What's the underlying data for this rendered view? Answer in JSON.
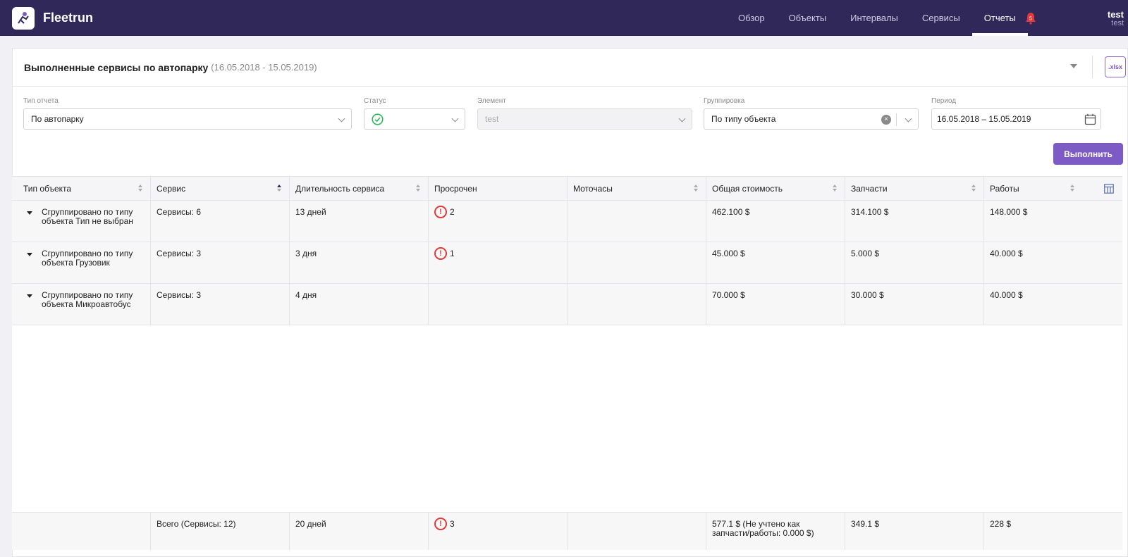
{
  "app": {
    "brand": "Fleetrun"
  },
  "nav": {
    "items": [
      {
        "label": "Обзор",
        "active": false
      },
      {
        "label": "Объекты",
        "active": false
      },
      {
        "label": "Интервалы",
        "active": false
      },
      {
        "label": "Сервисы",
        "active": false
      },
      {
        "label": "Отчеты",
        "active": true
      }
    ],
    "notifications": "5"
  },
  "user": {
    "name": "test",
    "account": "test"
  },
  "report": {
    "title": "Выполненные сервисы по автопарку",
    "period": "(16.05.2018 - 15.05.2019)",
    "export_label": ".xlsx"
  },
  "filters": {
    "report_type": {
      "label": "Тип отчета",
      "value": "По автопарку"
    },
    "status": {
      "label": "Статус",
      "value_icon": "check-circle-icon"
    },
    "element": {
      "label": "Элемент",
      "value": "test"
    },
    "grouping": {
      "label": "Группировка",
      "value": "По типу объекта"
    },
    "period": {
      "label": "Период",
      "value": "16.05.2018 – 15.05.2019"
    },
    "run_label": "Выполнить"
  },
  "table": {
    "columns": [
      "Тип объекта",
      "Сервис",
      "Длительность сервиса",
      "Просрочен",
      "Моточасы",
      "Общая стоимость",
      "Запчасти",
      "Работы"
    ],
    "rows": [
      {
        "group": "Сгруппировано по типу объекта Тип не выбран",
        "service": "Сервисы: 6",
        "duration": "13 дней",
        "overdue": "2",
        "hours": "",
        "total": "462.100 $",
        "parts": "314.100 $",
        "works": "148.000 $"
      },
      {
        "group": "Сгруппировано по типу объекта Грузовик",
        "service": "Сервисы: 3",
        "duration": "3 дня",
        "overdue": "1",
        "hours": "",
        "total": "45.000 $",
        "parts": "5.000 $",
        "works": "40.000 $"
      },
      {
        "group": "Сгруппировано по типу объекта Микроавтобус",
        "service": "Сервисы: 3",
        "duration": "4 дня",
        "overdue": "",
        "hours": "",
        "total": "70.000 $",
        "parts": "30.000 $",
        "works": "40.000 $"
      }
    ],
    "footer": {
      "service": "Всего (Сервисы: 12)",
      "duration": "20 дней",
      "overdue": "3",
      "total": "577.1 $ (Не учтено как запчасти/работы: 0.000 $)",
      "parts": "349.1 $",
      "works": "228 $"
    }
  }
}
